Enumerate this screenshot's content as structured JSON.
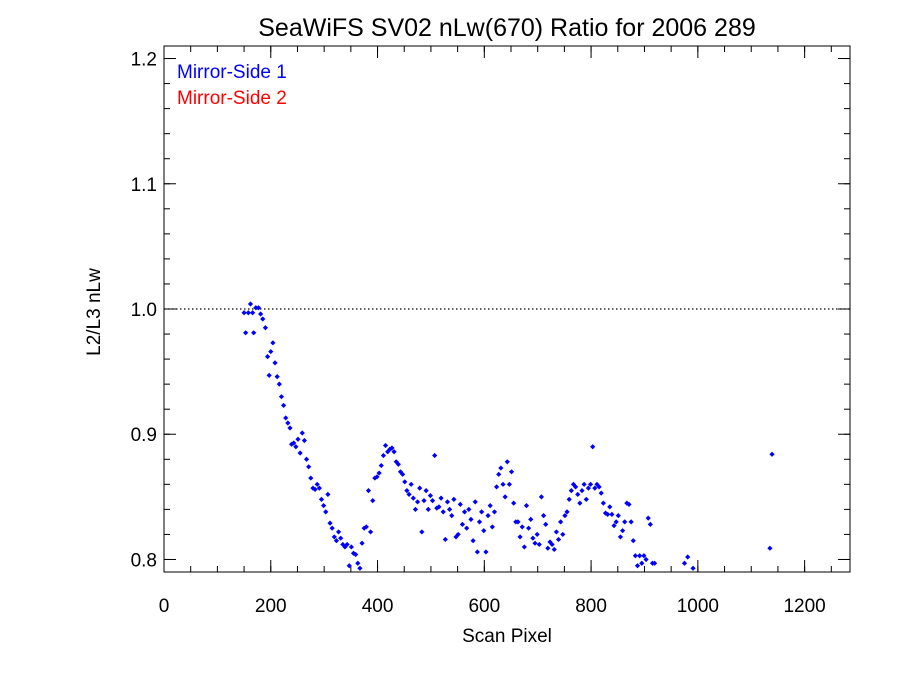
{
  "chart_data": {
    "type": "scatter",
    "title": "SeaWiFS SV02 nLw(670) Ratio for 2006 289",
    "xlabel": "Scan Pixel",
    "ylabel": "L2/L3 nLw",
    "xlim": [
      0,
      1285
    ],
    "ylim": [
      0.79,
      1.21
    ],
    "x_ticks": [
      0,
      200,
      400,
      600,
      800,
      1000,
      1200
    ],
    "x_tick_labels": [
      "0",
      "200",
      "400",
      "600",
      "800",
      "1000",
      "1200"
    ],
    "y_ticks": [
      0.8,
      0.9,
      1.0,
      1.1,
      1.2
    ],
    "y_tick_labels": [
      "0.8",
      "0.9",
      "1.0",
      "1.1",
      "1.2"
    ],
    "x_minor_step": 50,
    "y_minor_step": 0.02,
    "reference_line": 1.0,
    "legend": {
      "position": "top-left",
      "entries": [
        {
          "label": "Mirror-Side 1",
          "color": "#0000ff"
        },
        {
          "label": "Mirror-Side 2",
          "color": "#ff0000"
        }
      ]
    },
    "series": [
      {
        "name": "Mirror-Side 1",
        "color": "#0000ff",
        "points": [
          [
            150,
            0.997
          ],
          [
            153,
            0.981
          ],
          [
            158,
            0.997
          ],
          [
            162,
            1.004
          ],
          [
            166,
            0.997
          ],
          [
            168,
            0.981
          ],
          [
            172,
            1.001
          ],
          [
            177,
            1.001
          ],
          [
            181,
            0.996
          ],
          [
            185,
            0.992
          ],
          [
            190,
            0.985
          ],
          [
            194,
            0.962
          ],
          [
            197,
            0.947
          ],
          [
            200,
            0.966
          ],
          [
            204,
            0.973
          ],
          [
            208,
            0.957
          ],
          [
            212,
            0.946
          ],
          [
            216,
            0.94
          ],
          [
            220,
            0.93
          ],
          [
            224,
            0.923
          ],
          [
            228,
            0.913
          ],
          [
            232,
            0.909
          ],
          [
            236,
            0.905
          ],
          [
            239,
            0.892
          ],
          [
            243,
            0.893
          ],
          [
            247,
            0.89
          ],
          [
            251,
            0.896
          ],
          [
            255,
            0.885
          ],
          [
            259,
            0.901
          ],
          [
            263,
            0.895
          ],
          [
            267,
            0.88
          ],
          [
            271,
            0.874
          ],
          [
            275,
            0.865
          ],
          [
            279,
            0.857
          ],
          [
            283,
            0.856
          ],
          [
            287,
            0.86
          ],
          [
            291,
            0.857
          ],
          [
            295,
            0.848
          ],
          [
            299,
            0.843
          ],
          [
            303,
            0.838
          ],
          [
            307,
            0.852
          ],
          [
            311,
            0.829
          ],
          [
            315,
            0.825
          ],
          [
            319,
            0.818
          ],
          [
            323,
            0.815
          ],
          [
            327,
            0.822
          ],
          [
            331,
            0.817
          ],
          [
            335,
            0.812
          ],
          [
            339,
            0.81
          ],
          [
            343,
            0.812
          ],
          [
            347,
            0.795
          ],
          [
            351,
            0.81
          ],
          [
            355,
            0.805
          ],
          [
            359,
            0.804
          ],
          [
            363,
            0.797
          ],
          [
            367,
            0.793
          ],
          [
            371,
            0.813
          ],
          [
            375,
            0.825
          ],
          [
            379,
            0.826
          ],
          [
            383,
            0.855
          ],
          [
            387,
            0.822
          ],
          [
            391,
            0.847
          ],
          [
            395,
            0.865
          ],
          [
            399,
            0.866
          ],
          [
            403,
            0.869
          ],
          [
            407,
            0.875
          ],
          [
            411,
            0.883
          ],
          [
            415,
            0.891
          ],
          [
            419,
            0.886
          ],
          [
            423,
            0.888
          ],
          [
            427,
            0.889
          ],
          [
            431,
            0.886
          ],
          [
            435,
            0.878
          ],
          [
            439,
            0.876
          ],
          [
            443,
            0.87
          ],
          [
            447,
            0.868
          ],
          [
            451,
            0.862
          ],
          [
            455,
            0.855
          ],
          [
            459,
            0.852
          ],
          [
            463,
            0.86
          ],
          [
            467,
            0.849
          ],
          [
            471,
            0.84
          ],
          [
            475,
            0.846
          ],
          [
            479,
            0.857
          ],
          [
            483,
            0.822
          ],
          [
            487,
            0.847
          ],
          [
            491,
            0.855
          ],
          [
            495,
            0.84
          ],
          [
            499,
            0.851
          ],
          [
            503,
            0.847
          ],
          [
            507,
            0.883
          ],
          [
            511,
            0.841
          ],
          [
            515,
            0.842
          ],
          [
            519,
            0.849
          ],
          [
            523,
            0.838
          ],
          [
            527,
            0.816
          ],
          [
            531,
            0.846
          ],
          [
            535,
            0.84
          ],
          [
            539,
            0.835
          ],
          [
            543,
            0.848
          ],
          [
            547,
            0.818
          ],
          [
            551,
            0.82
          ],
          [
            555,
            0.844
          ],
          [
            559,
            0.828
          ],
          [
            563,
            0.838
          ],
          [
            567,
            0.825
          ],
          [
            571,
            0.84
          ],
          [
            575,
            0.832
          ],
          [
            579,
            0.815
          ],
          [
            583,
            0.846
          ],
          [
            587,
            0.806
          ],
          [
            591,
            0.83
          ],
          [
            595,
            0.838
          ],
          [
            599,
            0.823
          ],
          [
            603,
            0.806
          ],
          [
            607,
            0.835
          ],
          [
            611,
            0.843
          ],
          [
            615,
            0.826
          ],
          [
            619,
            0.838
          ],
          [
            623,
            0.858
          ],
          [
            627,
            0.868
          ],
          [
            631,
            0.873
          ],
          [
            635,
            0.86
          ],
          [
            639,
            0.85
          ],
          [
            643,
            0.878
          ],
          [
            647,
            0.86
          ],
          [
            651,
            0.87
          ],
          [
            655,
            0.845
          ],
          [
            659,
            0.83
          ],
          [
            663,
            0.83
          ],
          [
            667,
            0.818
          ],
          [
            671,
            0.826
          ],
          [
            675,
            0.81
          ],
          [
            679,
            0.843
          ],
          [
            683,
            0.825
          ],
          [
            687,
            0.832
          ],
          [
            691,
            0.817
          ],
          [
            695,
            0.813
          ],
          [
            699,
            0.82
          ],
          [
            703,
            0.812
          ],
          [
            707,
            0.85
          ],
          [
            711,
            0.835
          ],
          [
            715,
            0.828
          ],
          [
            719,
            0.809
          ],
          [
            723,
            0.814
          ],
          [
            727,
            0.812
          ],
          [
            731,
            0.808
          ],
          [
            735,
            0.822
          ],
          [
            739,
            0.816
          ],
          [
            743,
            0.83
          ],
          [
            747,
            0.82
          ],
          [
            751,
            0.835
          ],
          [
            755,
            0.838
          ],
          [
            759,
            0.848
          ],
          [
            763,
            0.855
          ],
          [
            767,
            0.86
          ],
          [
            771,
            0.858
          ],
          [
            775,
            0.852
          ],
          [
            779,
            0.845
          ],
          [
            783,
            0.855
          ],
          [
            787,
            0.86
          ],
          [
            791,
            0.848
          ],
          [
            795,
            0.857
          ],
          [
            799,
            0.86
          ],
          [
            803,
            0.89
          ],
          [
            807,
            0.857
          ],
          [
            811,
            0.86
          ],
          [
            815,
            0.858
          ],
          [
            819,
            0.853
          ],
          [
            823,
            0.845
          ],
          [
            827,
            0.837
          ],
          [
            831,
            0.836
          ],
          [
            835,
            0.842
          ],
          [
            839,
            0.836
          ],
          [
            843,
            0.827
          ],
          [
            847,
            0.83
          ],
          [
            851,
            0.835
          ],
          [
            855,
            0.818
          ],
          [
            859,
            0.823
          ],
          [
            863,
            0.83
          ],
          [
            867,
            0.845
          ],
          [
            871,
            0.844
          ],
          [
            875,
            0.83
          ],
          [
            879,
            0.815
          ],
          [
            883,
            0.803
          ],
          [
            887,
            0.795
          ],
          [
            891,
            0.803
          ],
          [
            895,
            0.797
          ],
          [
            899,
            0.803
          ],
          [
            903,
            0.8
          ],
          [
            907,
            0.833
          ],
          [
            911,
            0.828
          ],
          [
            915,
            0.797
          ],
          [
            919,
            0.797
          ],
          [
            975,
            0.797
          ],
          [
            981,
            0.802
          ],
          [
            991,
            0.793
          ],
          [
            1135,
            0.809
          ],
          [
            1139,
            0.884
          ]
        ]
      },
      {
        "name": "Mirror-Side 2",
        "color": "#ff0000",
        "points": []
      }
    ]
  }
}
